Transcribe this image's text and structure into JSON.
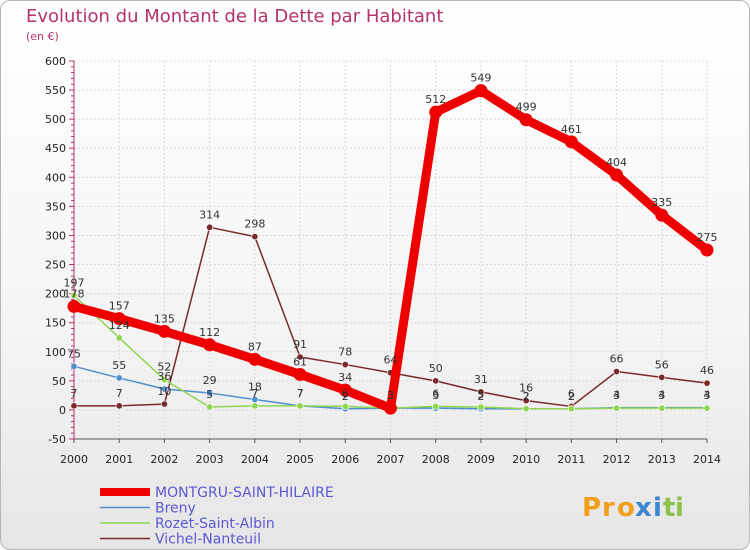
{
  "chart_data": {
    "type": "line",
    "title": "Evolution du Montant de la Dette par Habitant",
    "subtitle": "(en €)",
    "xlabel": "",
    "ylabel": "",
    "ylim": [
      -50,
      600
    ],
    "yticks": [
      -50,
      0,
      50,
      100,
      150,
      200,
      250,
      300,
      350,
      400,
      450,
      500,
      550,
      600
    ],
    "ytick_labels": [
      "-50",
      "0",
      "50",
      "100",
      "150",
      "200",
      "250",
      "300",
      "350",
      "400",
      "450",
      "500",
      "550",
      "600"
    ],
    "x": [
      "2000",
      "2001",
      "2002",
      "2003",
      "2004",
      "2005",
      "2006",
      "2007",
      "2008",
      "2009",
      "2010",
      "2011",
      "2012",
      "2013",
      "2014"
    ],
    "grid": true,
    "legend_position": "bottom-left",
    "series": [
      {
        "name": "Vichel-Nanteuil",
        "color": "#7a2a2a",
        "values": [
          7,
          7,
          10,
          314,
          298,
          91,
          78,
          64,
          50,
          31,
          16,
          6,
          66,
          56,
          46
        ],
        "labels": [
          "7",
          "7",
          "10",
          "314",
          "298",
          "91",
          "78",
          "64",
          "50",
          "31",
          "16",
          "6",
          "66",
          "56",
          "46"
        ]
      },
      {
        "name": "Breny",
        "color": "#4f8fcf",
        "values": [
          75,
          55,
          36,
          29,
          18,
          7,
          2,
          3,
          3,
          2,
          2,
          2,
          4,
          4,
          4
        ],
        "labels": [
          "75",
          "55",
          "36",
          "29",
          "18",
          "7",
          "2",
          "3",
          "3",
          "2",
          "2",
          "2",
          "4",
          "4",
          "4"
        ]
      },
      {
        "name": "Rozet-Saint-Albin",
        "color": "#8ed64f",
        "values": [
          197,
          124,
          52,
          5,
          7,
          7,
          6,
          3,
          6,
          5,
          2,
          2,
          3,
          3,
          3
        ],
        "labels": [
          "197",
          "124",
          "52",
          "5",
          "7",
          "7",
          "6",
          "3",
          "6",
          "5",
          "2",
          "2",
          "3",
          "3",
          "3"
        ]
      },
      {
        "name": "MONTGRU-SAINT-HILAIRE",
        "color": "#ee0000",
        "values": [
          178,
          157,
          135,
          112,
          87,
          61,
          34,
          3,
          512,
          549,
          499,
          461,
          404,
          335,
          275
        ],
        "labels": [
          "178",
          "157",
          "135",
          "112",
          "87",
          "61",
          "34",
          "3",
          "512",
          "549",
          "499",
          "461",
          "404",
          "335",
          "275"
        ]
      }
    ],
    "legend": [
      "MONTGRU-SAINT-HILAIRE",
      "Breny",
      "Rozet-Saint-Albin",
      "Vichel-Nanteuil"
    ]
  },
  "logo": {
    "letters": [
      "P",
      "r",
      "o",
      "x",
      "i",
      "t",
      "i"
    ],
    "colors": [
      "#f2a01b",
      "#f2a01b",
      "#f2a01b",
      "#3a86d0",
      "#3a86d0",
      "#8bc34a",
      "#8bc34a"
    ]
  }
}
